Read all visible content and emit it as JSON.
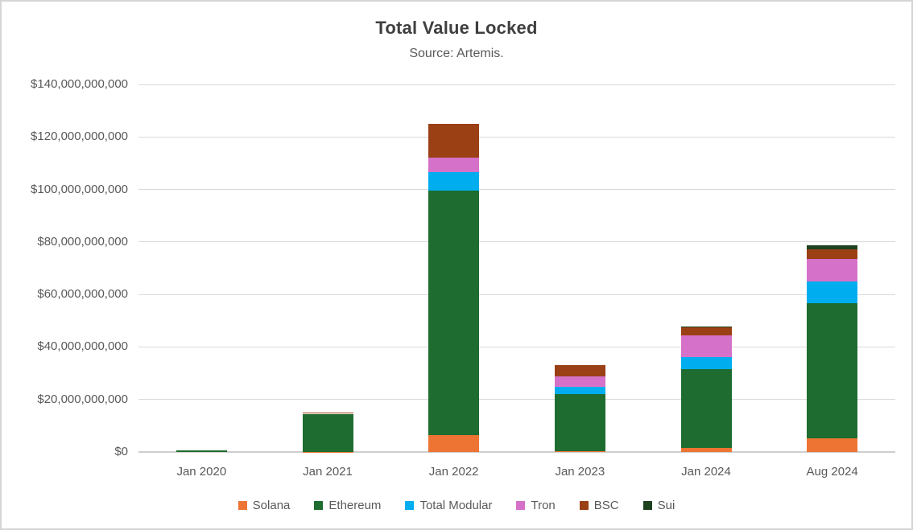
{
  "header": {
    "title": "Total Value Locked",
    "subtitle": "Source: Artemis."
  },
  "chart_data": {
    "type": "bar",
    "stacked": true,
    "title": "Total Value Locked",
    "subtitle": "Source: Artemis.",
    "value_unit": "USD billions (estimated from axis)",
    "categories": [
      "Jan 2020",
      "Jan 2021",
      "Jan 2022",
      "Jan 2023",
      "Jan 2024",
      "Aug 2024"
    ],
    "series": [
      {
        "name": "Solana",
        "color": "#ED7433",
        "values": [
          0,
          0.15,
          6.4,
          0.2,
          1.4,
          5.2
        ]
      },
      {
        "name": "Ethereum",
        "color": "#1E6C30",
        "values": [
          0.55,
          14.4,
          93.1,
          22,
          30.3,
          51.5
        ]
      },
      {
        "name": "Total Modular",
        "color": "#00AEEF",
        "values": [
          0,
          0,
          7,
          2.5,
          4.6,
          8.3
        ]
      },
      {
        "name": "Tron",
        "color": "#D671C9",
        "values": [
          0,
          0,
          5.5,
          4,
          8,
          8.6
        ]
      },
      {
        "name": "BSC",
        "color": "#9B3F15",
        "values": [
          0,
          0.4,
          12.9,
          4.3,
          3.1,
          3.7
        ]
      },
      {
        "name": "Sui",
        "color": "#1E4220",
        "values": [
          0,
          0,
          0,
          0,
          0.5,
          1.4
        ]
      }
    ],
    "totals": [
      0.55,
      14.95,
      124.9,
      33.0,
      47.9,
      78.7
    ],
    "ylim": [
      0,
      140
    ],
    "ytick_step": 20,
    "ytick_labels": [
      "$0",
      "$20,000,000,000",
      "$40,000,000,000",
      "$60,000,000,000",
      "$80,000,000,000",
      "$100,000,000,000",
      "$120,000,000,000",
      "$140,000,000,000"
    ],
    "grid": true,
    "legend_position": "bottom"
  },
  "colors": {
    "grid": "#D9D9D9",
    "axis_line": "#CFCDCD",
    "axis_text": "#595959",
    "title_text": "#3F3F3F",
    "subtitle_text": "#595959",
    "canvas_border": "#D6D4D4"
  }
}
